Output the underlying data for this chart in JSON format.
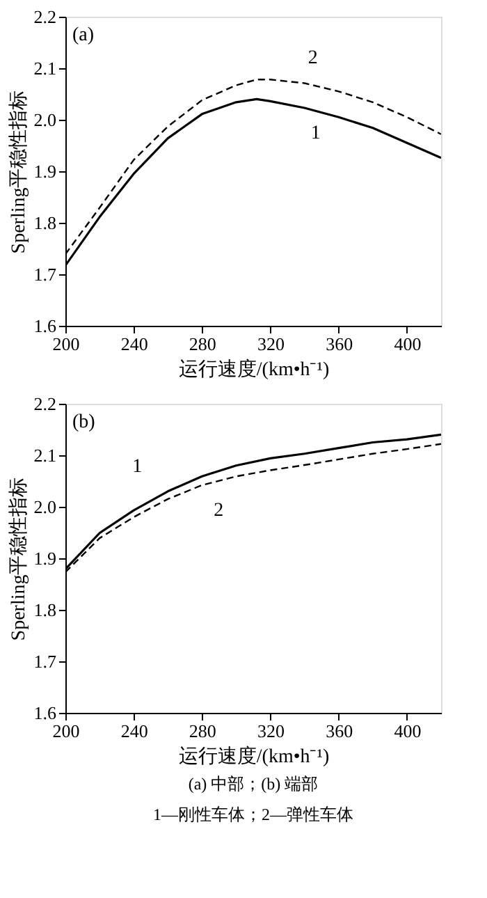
{
  "chart_data": [
    {
      "type": "line",
      "title": "(a)",
      "xlabel": "运行速度/(km•h⁻¹)",
      "ylabel": "Sperling平稳性指标",
      "x": [
        200,
        220,
        240,
        260,
        280,
        300,
        312,
        320,
        340,
        360,
        380,
        400,
        420
      ],
      "xlim": [
        200,
        420
      ],
      "xticks": [
        200,
        240,
        280,
        320,
        360,
        400
      ],
      "ylim": [
        1.6,
        2.2
      ],
      "yticks": [
        1.6,
        1.7,
        1.8,
        1.9,
        {
          "value": 2.0,
          "label": "2.0"
        },
        2.1,
        2.2
      ],
      "grid": false,
      "series": [
        {
          "name": "1",
          "color": "#000000",
          "line_style": "solid",
          "values": [
            1.717,
            1.811,
            1.895,
            1.964,
            2.011,
            2.034,
            2.04,
            2.036,
            2.023,
            2.005,
            1.984,
            1.955,
            1.926
          ]
        },
        {
          "name": "2",
          "color": "#000000",
          "line_style": "dashed",
          "values": [
            1.739,
            1.829,
            1.922,
            1.987,
            2.038,
            2.067,
            2.078,
            2.078,
            2.071,
            2.055,
            2.034,
            2.005,
            1.972
          ]
        }
      ]
    },
    {
      "type": "line",
      "title": "(b)",
      "xlabel": "运行速度/(km•h⁻¹)",
      "ylabel": "Sperling平稳性指标",
      "x": [
        200,
        220,
        240,
        260,
        280,
        300,
        320,
        340,
        360,
        380,
        400,
        420
      ],
      "xlim": [
        200,
        420
      ],
      "xticks": [
        200,
        240,
        280,
        320,
        360,
        400
      ],
      "ylim": [
        1.6,
        2.2
      ],
      "yticks": [
        1.6,
        1.7,
        1.8,
        1.9,
        {
          "value": 2.0,
          "label": "2.0"
        },
        2.1,
        2.2
      ],
      "grid": false,
      "annotations": [
        "(a) 中部；(b) 端部",
        "1—刚性车体；2—弹性车体"
      ],
      "series": [
        {
          "name": "1",
          "color": "#000000",
          "line_style": "solid",
          "values": [
            1.879,
            1.949,
            1.993,
            2.03,
            2.059,
            2.08,
            2.094,
            2.103,
            2.114,
            2.125,
            2.131,
            2.14
          ]
        },
        {
          "name": "2",
          "color": "#000000",
          "line_style": "dashed",
          "values": [
            1.873,
            1.939,
            1.98,
            2.015,
            2.042,
            2.059,
            2.071,
            2.081,
            2.092,
            2.103,
            2.112,
            2.122
          ]
        }
      ]
    }
  ]
}
